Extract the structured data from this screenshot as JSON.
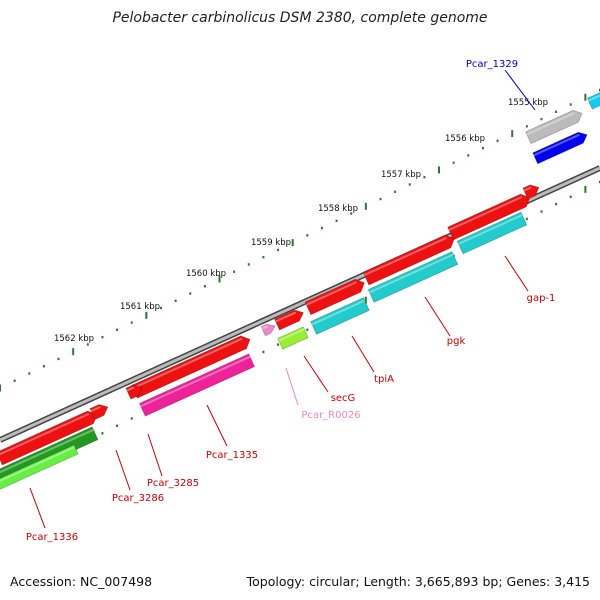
{
  "title": "Pelobacter carbinolicus DSM 2380, complete genome",
  "footer": {
    "accession": "Accession: NC_007498",
    "stats": "Topology: circular; Length: 3,665,893 bp; Genes: 3,415"
  },
  "ticks": [
    "1555 kbp",
    "1556 kbp",
    "1557 kbp",
    "1558 kbp",
    "1559 kbp",
    "1560 kbp",
    "1561 kbp",
    "1562 kbp"
  ],
  "genes": [
    {
      "label": "Pcar_1329",
      "color": "#0000cc"
    },
    {
      "label": "gap-1",
      "color": "#cc0000"
    },
    {
      "label": "pgk",
      "color": "#cc0000"
    },
    {
      "label": "tpiA",
      "color": "#cc0000"
    },
    {
      "label": "secG",
      "color": "#cc0000"
    },
    {
      "label": "Pcar_R0026",
      "color": "#ee88bb"
    },
    {
      "label": "Pcar_1335",
      "color": "#cc0000"
    },
    {
      "label": "Pcar_3285",
      "color": "#cc0000"
    },
    {
      "label": "Pcar_3286",
      "color": "#cc0000"
    },
    {
      "label": "Pcar_1336",
      "color": "#cc0000"
    }
  ],
  "colors": {
    "backbone": "#888888",
    "tick": "#2a7a2a",
    "cds_red": "#ee1111",
    "cds_cyan": "#22cccc",
    "cds_magenta": "#ee2299",
    "cds_green_dark": "#229922",
    "cds_green_light": "#66ee44",
    "cds_blue": "#0000ee",
    "cds_gray": "#bbbbbb",
    "cds_skyblue": "#11ccee",
    "trna_pink": "#ee88cc",
    "small_lime": "#99ee33"
  }
}
